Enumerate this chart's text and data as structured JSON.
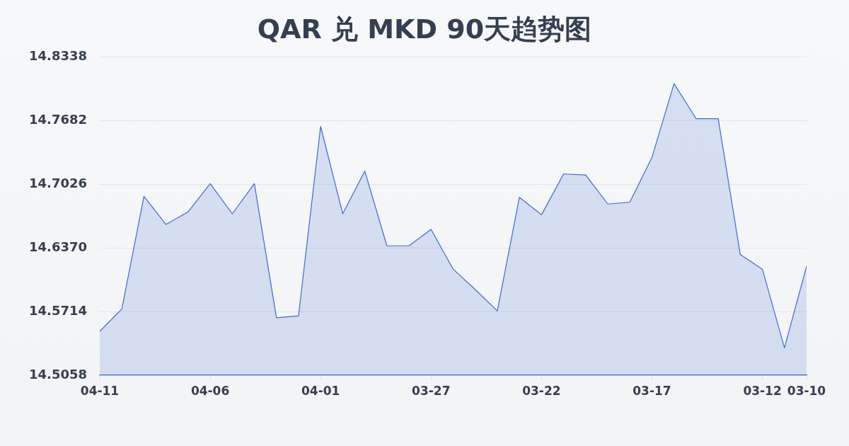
{
  "chart_data": {
    "type": "area",
    "title": "QAR 兑 MKD 90天趋势图",
    "categories": [
      "04-11",
      null,
      null,
      null,
      null,
      "04-06",
      null,
      null,
      null,
      null,
      "04-01",
      null,
      null,
      null,
      null,
      "03-27",
      null,
      null,
      null,
      null,
      "03-22",
      null,
      null,
      null,
      null,
      "03-17",
      null,
      null,
      null,
      null,
      "03-12",
      null,
      "03-10"
    ],
    "values": [
      14.551,
      14.574,
      14.69,
      14.661,
      14.674,
      14.703,
      14.672,
      14.703,
      14.565,
      14.567,
      14.762,
      14.672,
      14.716,
      14.639,
      14.639,
      14.656,
      14.615,
      14.594,
      14.572,
      14.689,
      14.671,
      14.713,
      14.712,
      14.682,
      14.684,
      14.73,
      14.806,
      14.77,
      14.77,
      14.63,
      14.615,
      14.534,
      14.618
    ],
    "color": "#3a6bd0",
    "ylim": [
      14.5058,
      14.8338
    ],
    "yticks": [
      14.5058,
      14.5714,
      {
        "value": 14.637,
        "label": "14.6370"
      },
      14.7026,
      14.7682,
      14.8338
    ],
    "grid": "y",
    "legend": false
  }
}
